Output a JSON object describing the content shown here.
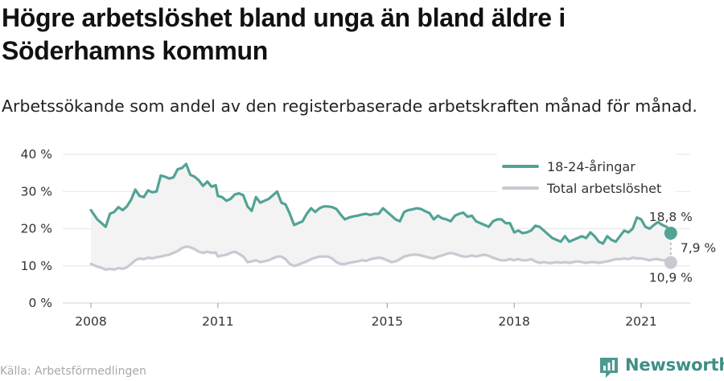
{
  "title": "Högre arbetslöshet bland unga än bland äldre i Söderhamns kommun",
  "subtitle": "Arbetssökande som andel av den registerbaserade arbetskraften månad för månad.",
  "source": "Källa: Arbetsförmedlingen",
  "brand": {
    "name": "Newsworthy",
    "icon": "newsworthy-logo-icon"
  },
  "colors": {
    "youth": "#52a396",
    "total": "#c9c9d3",
    "band": "#f3f3f3",
    "text": "#333333"
  },
  "chart_data": {
    "type": "line",
    "title": "Högre arbetslöshet bland unga än bland äldre i Söderhamns kommun",
    "subtitle": "Arbetssökande som andel av den registerbaserade arbetskraften månad för månad.",
    "ylim": [
      0,
      40
    ],
    "yticks": [
      0,
      10,
      20,
      30,
      40
    ],
    "ytick_labels": [
      "0 %",
      "10 %",
      "20 %",
      "30 %",
      "40 %"
    ],
    "xlim": [
      2008,
      2021.9
    ],
    "xticks": [
      2008,
      2011,
      2015,
      2018,
      2021
    ],
    "xtick_labels": [
      "2008",
      "2011",
      "2015",
      "2018",
      "2021"
    ],
    "grid": true,
    "legend_position": "top-right",
    "gap_label": "7,9 %",
    "series": [
      {
        "name": "18-24-åringar",
        "color": "#52a396",
        "end_label": "18,8 %",
        "points": [
          [
            2008.0,
            25.0
          ],
          [
            2008.15,
            22.5
          ],
          [
            2008.25,
            21.5
          ],
          [
            2008.35,
            20.5
          ],
          [
            2008.45,
            24.0
          ],
          [
            2008.55,
            24.5
          ],
          [
            2008.65,
            25.8
          ],
          [
            2008.75,
            25.0
          ],
          [
            2008.85,
            26.0
          ],
          [
            2008.95,
            27.8
          ],
          [
            2009.05,
            30.5
          ],
          [
            2009.15,
            28.8
          ],
          [
            2009.25,
            28.5
          ],
          [
            2009.35,
            30.3
          ],
          [
            2009.45,
            29.8
          ],
          [
            2009.55,
            30.0
          ],
          [
            2009.65,
            34.3
          ],
          [
            2009.75,
            34.0
          ],
          [
            2009.85,
            33.5
          ],
          [
            2009.95,
            33.8
          ],
          [
            2010.05,
            36.0
          ],
          [
            2010.15,
            36.3
          ],
          [
            2010.25,
            37.4
          ],
          [
            2010.35,
            34.5
          ],
          [
            2010.45,
            34.0
          ],
          [
            2010.55,
            33.0
          ],
          [
            2010.65,
            31.5
          ],
          [
            2010.75,
            32.7
          ],
          [
            2010.85,
            31.3
          ],
          [
            2010.95,
            31.7
          ],
          [
            2011.0,
            28.8
          ],
          [
            2011.1,
            28.5
          ],
          [
            2011.2,
            27.5
          ],
          [
            2011.3,
            28.0
          ],
          [
            2011.4,
            29.2
          ],
          [
            2011.5,
            29.5
          ],
          [
            2011.6,
            29.0
          ],
          [
            2011.7,
            26.0
          ],
          [
            2011.8,
            24.8
          ],
          [
            2011.9,
            28.5
          ],
          [
            2012.0,
            27.0
          ],
          [
            2012.1,
            27.5
          ],
          [
            2012.2,
            28.0
          ],
          [
            2012.3,
            29.0
          ],
          [
            2012.4,
            30.0
          ],
          [
            2012.5,
            27.0
          ],
          [
            2012.6,
            26.5
          ],
          [
            2012.7,
            24.0
          ],
          [
            2012.8,
            21.0
          ],
          [
            2012.9,
            21.5
          ],
          [
            2013.0,
            22.0
          ],
          [
            2013.1,
            24.0
          ],
          [
            2013.2,
            25.5
          ],
          [
            2013.3,
            24.5
          ],
          [
            2013.4,
            25.5
          ],
          [
            2013.5,
            26.0
          ],
          [
            2013.6,
            26.0
          ],
          [
            2013.7,
            25.8
          ],
          [
            2013.8,
            25.3
          ],
          [
            2013.9,
            23.8
          ],
          [
            2014.0,
            22.5
          ],
          [
            2014.1,
            23.0
          ],
          [
            2014.2,
            23.3
          ],
          [
            2014.3,
            23.5
          ],
          [
            2014.4,
            23.8
          ],
          [
            2014.5,
            24.0
          ],
          [
            2014.6,
            23.7
          ],
          [
            2014.7,
            24.0
          ],
          [
            2014.8,
            24.0
          ],
          [
            2014.9,
            25.5
          ],
          [
            2015.0,
            24.5
          ],
          [
            2015.1,
            23.5
          ],
          [
            2015.2,
            22.5
          ],
          [
            2015.3,
            22.0
          ],
          [
            2015.4,
            24.5
          ],
          [
            2015.5,
            25.0
          ],
          [
            2015.6,
            25.2
          ],
          [
            2015.7,
            25.5
          ],
          [
            2015.8,
            25.3
          ],
          [
            2015.9,
            24.7
          ],
          [
            2016.0,
            24.2
          ],
          [
            2016.1,
            22.5
          ],
          [
            2016.2,
            23.5
          ],
          [
            2016.3,
            22.8
          ],
          [
            2016.4,
            22.5
          ],
          [
            2016.5,
            22.0
          ],
          [
            2016.6,
            23.5
          ],
          [
            2016.7,
            24.0
          ],
          [
            2016.8,
            24.3
          ],
          [
            2016.9,
            23.2
          ],
          [
            2017.0,
            23.5
          ],
          [
            2017.1,
            22.0
          ],
          [
            2017.2,
            21.5
          ],
          [
            2017.3,
            21.0
          ],
          [
            2017.4,
            20.5
          ],
          [
            2017.5,
            22.0
          ],
          [
            2017.6,
            22.5
          ],
          [
            2017.7,
            22.5
          ],
          [
            2017.8,
            21.5
          ],
          [
            2017.9,
            21.5
          ],
          [
            2018.0,
            19.0
          ],
          [
            2018.1,
            19.5
          ],
          [
            2018.2,
            18.8
          ],
          [
            2018.3,
            19.0
          ],
          [
            2018.4,
            19.5
          ],
          [
            2018.5,
            20.8
          ],
          [
            2018.6,
            20.5
          ],
          [
            2018.7,
            19.5
          ],
          [
            2018.8,
            18.5
          ],
          [
            2018.9,
            17.5
          ],
          [
            2019.0,
            17.0
          ],
          [
            2019.1,
            16.5
          ],
          [
            2019.2,
            18.0
          ],
          [
            2019.3,
            16.5
          ],
          [
            2019.4,
            17.0
          ],
          [
            2019.5,
            17.5
          ],
          [
            2019.6,
            18.0
          ],
          [
            2019.7,
            17.5
          ],
          [
            2019.8,
            19.0
          ],
          [
            2019.9,
            18.0
          ],
          [
            2020.0,
            16.5
          ],
          [
            2020.1,
            16.0
          ],
          [
            2020.2,
            18.0
          ],
          [
            2020.3,
            17.0
          ],
          [
            2020.4,
            16.5
          ],
          [
            2020.5,
            18.0
          ],
          [
            2020.6,
            19.5
          ],
          [
            2020.7,
            19.0
          ],
          [
            2020.8,
            20.0
          ],
          [
            2020.9,
            23.0
          ],
          [
            2021.0,
            22.5
          ],
          [
            2021.1,
            20.5
          ],
          [
            2021.2,
            20.0
          ],
          [
            2021.3,
            21.0
          ],
          [
            2021.4,
            21.8
          ],
          [
            2021.5,
            21.0
          ],
          [
            2021.6,
            20.5
          ],
          [
            2021.7,
            18.8
          ]
        ]
      },
      {
        "name": "Total arbetslöshet",
        "color": "#c9c9d3",
        "end_label": "10,9 %",
        "points": [
          [
            2008.0,
            10.5
          ],
          [
            2008.15,
            9.8
          ],
          [
            2008.25,
            9.5
          ],
          [
            2008.35,
            9.0
          ],
          [
            2008.45,
            9.2
          ],
          [
            2008.55,
            9.0
          ],
          [
            2008.65,
            9.4
          ],
          [
            2008.75,
            9.2
          ],
          [
            2008.85,
            9.6
          ],
          [
            2008.95,
            10.5
          ],
          [
            2009.05,
            11.5
          ],
          [
            2009.15,
            12.0
          ],
          [
            2009.25,
            11.8
          ],
          [
            2009.35,
            12.2
          ],
          [
            2009.45,
            12.0
          ],
          [
            2009.55,
            12.3
          ],
          [
            2009.65,
            12.5
          ],
          [
            2009.75,
            12.8
          ],
          [
            2009.85,
            13.0
          ],
          [
            2009.95,
            13.5
          ],
          [
            2010.05,
            14.0
          ],
          [
            2010.15,
            14.8
          ],
          [
            2010.25,
            15.2
          ],
          [
            2010.35,
            15.0
          ],
          [
            2010.45,
            14.5
          ],
          [
            2010.55,
            13.8
          ],
          [
            2010.65,
            13.5
          ],
          [
            2010.75,
            13.8
          ],
          [
            2010.85,
            13.5
          ],
          [
            2010.95,
            13.6
          ],
          [
            2011.0,
            12.5
          ],
          [
            2011.1,
            12.8
          ],
          [
            2011.2,
            13.0
          ],
          [
            2011.3,
            13.5
          ],
          [
            2011.4,
            13.8
          ],
          [
            2011.5,
            13.2
          ],
          [
            2011.6,
            12.5
          ],
          [
            2011.7,
            11.0
          ],
          [
            2011.8,
            11.2
          ],
          [
            2011.9,
            11.5
          ],
          [
            2012.0,
            11.0
          ],
          [
            2012.1,
            11.2
          ],
          [
            2012.2,
            11.5
          ],
          [
            2012.3,
            12.0
          ],
          [
            2012.4,
            12.5
          ],
          [
            2012.5,
            12.5
          ],
          [
            2012.6,
            11.8
          ],
          [
            2012.7,
            10.5
          ],
          [
            2012.8,
            10.0
          ],
          [
            2012.9,
            10.3
          ],
          [
            2013.0,
            10.8
          ],
          [
            2013.1,
            11.2
          ],
          [
            2013.2,
            11.8
          ],
          [
            2013.3,
            12.2
          ],
          [
            2013.4,
            12.5
          ],
          [
            2013.5,
            12.5
          ],
          [
            2013.6,
            12.5
          ],
          [
            2013.7,
            12.0
          ],
          [
            2013.8,
            11.0
          ],
          [
            2013.9,
            10.5
          ],
          [
            2014.0,
            10.5
          ],
          [
            2014.1,
            10.8
          ],
          [
            2014.2,
            11.0
          ],
          [
            2014.3,
            11.2
          ],
          [
            2014.4,
            11.5
          ],
          [
            2014.5,
            11.3
          ],
          [
            2014.6,
            11.8
          ],
          [
            2014.7,
            12.0
          ],
          [
            2014.8,
            12.2
          ],
          [
            2014.9,
            12.0
          ],
          [
            2015.0,
            11.5
          ],
          [
            2015.1,
            11.0
          ],
          [
            2015.2,
            11.2
          ],
          [
            2015.3,
            11.8
          ],
          [
            2015.4,
            12.5
          ],
          [
            2015.5,
            12.8
          ],
          [
            2015.6,
            13.0
          ],
          [
            2015.7,
            13.0
          ],
          [
            2015.8,
            12.8
          ],
          [
            2015.9,
            12.5
          ],
          [
            2016.0,
            12.2
          ],
          [
            2016.1,
            12.0
          ],
          [
            2016.2,
            12.5
          ],
          [
            2016.3,
            12.8
          ],
          [
            2016.4,
            13.2
          ],
          [
            2016.5,
            13.5
          ],
          [
            2016.6,
            13.2
          ],
          [
            2016.7,
            12.8
          ],
          [
            2016.8,
            12.5
          ],
          [
            2016.9,
            12.5
          ],
          [
            2017.0,
            12.8
          ],
          [
            2017.1,
            12.5
          ],
          [
            2017.2,
            12.8
          ],
          [
            2017.3,
            13.0
          ],
          [
            2017.4,
            12.7
          ],
          [
            2017.5,
            12.2
          ],
          [
            2017.6,
            11.8
          ],
          [
            2017.7,
            11.5
          ],
          [
            2017.8,
            11.5
          ],
          [
            2017.9,
            11.8
          ],
          [
            2018.0,
            11.5
          ],
          [
            2018.1,
            11.8
          ],
          [
            2018.2,
            11.5
          ],
          [
            2018.3,
            11.5
          ],
          [
            2018.4,
            11.8
          ],
          [
            2018.5,
            11.2
          ],
          [
            2018.6,
            10.8
          ],
          [
            2018.7,
            11.0
          ],
          [
            2018.8,
            10.8
          ],
          [
            2018.9,
            10.8
          ],
          [
            2019.0,
            11.0
          ],
          [
            2019.1,
            10.8
          ],
          [
            2019.2,
            11.0
          ],
          [
            2019.3,
            10.8
          ],
          [
            2019.4,
            11.0
          ],
          [
            2019.5,
            11.2
          ],
          [
            2019.6,
            11.0
          ],
          [
            2019.7,
            10.8
          ],
          [
            2019.8,
            11.0
          ],
          [
            2019.9,
            11.0
          ],
          [
            2020.0,
            10.8
          ],
          [
            2020.1,
            11.0
          ],
          [
            2020.2,
            11.2
          ],
          [
            2020.3,
            11.5
          ],
          [
            2020.4,
            11.8
          ],
          [
            2020.5,
            11.8
          ],
          [
            2020.6,
            12.0
          ],
          [
            2020.7,
            11.8
          ],
          [
            2020.8,
            12.2
          ],
          [
            2020.9,
            12.0
          ],
          [
            2021.0,
            12.0
          ],
          [
            2021.1,
            11.8
          ],
          [
            2021.2,
            11.5
          ],
          [
            2021.3,
            11.8
          ],
          [
            2021.4,
            11.8
          ],
          [
            2021.5,
            11.5
          ],
          [
            2021.6,
            11.5
          ],
          [
            2021.7,
            10.9
          ]
        ]
      }
    ]
  }
}
